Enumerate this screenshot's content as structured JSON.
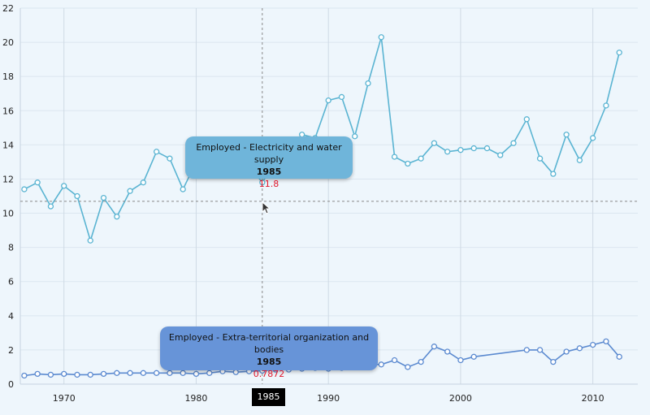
{
  "chart_data": {
    "type": "line",
    "title": "",
    "xlabel": "",
    "ylabel": "",
    "xlim": [
      1966.7,
      2013.4
    ],
    "ylim": [
      0,
      22
    ],
    "y_ticks": [
      0,
      2,
      4,
      6,
      8,
      10,
      12,
      14,
      16,
      18,
      20,
      22
    ],
    "x_ticks": [
      1970,
      1980,
      1990,
      2000,
      2010
    ],
    "grid": true,
    "series": [
      {
        "name": "Employed - Electricity and water supply",
        "color": "#5ab4d2",
        "points": [
          [
            1967,
            11.4
          ],
          [
            1968,
            11.8
          ],
          [
            1969,
            10.4
          ],
          [
            1970,
            11.6
          ],
          [
            1971,
            11.0
          ],
          [
            1972,
            8.4
          ],
          [
            1973,
            10.9
          ],
          [
            1974,
            9.8
          ],
          [
            1975,
            11.3
          ],
          [
            1976,
            11.8
          ],
          [
            1977,
            13.6
          ],
          [
            1978,
            13.2
          ],
          [
            1979,
            11.4
          ],
          [
            1980,
            13.0
          ],
          [
            1981,
            13.4
          ],
          [
            1982,
            13.2
          ],
          [
            1983,
            12.6
          ],
          [
            1984,
            12.8
          ],
          [
            1985,
            11.8
          ],
          [
            1986,
            13.0
          ],
          [
            1987,
            13.2
          ],
          [
            1988,
            14.6
          ],
          [
            1989,
            14.4
          ],
          [
            1990,
            16.6
          ],
          [
            1991,
            16.8
          ],
          [
            1992,
            14.5
          ],
          [
            1993,
            17.6
          ],
          [
            1994,
            20.3
          ],
          [
            1995,
            13.3
          ],
          [
            1996,
            12.9
          ],
          [
            1997,
            13.2
          ],
          [
            1998,
            14.1
          ],
          [
            1999,
            13.6
          ],
          [
            2000,
            13.7
          ],
          [
            2001,
            13.8
          ],
          [
            2002,
            13.8
          ],
          [
            2003,
            13.4
          ],
          [
            2004,
            14.1
          ],
          [
            2005,
            15.5
          ],
          [
            2006,
            13.2
          ],
          [
            2007,
            12.3
          ],
          [
            2008,
            14.6
          ],
          [
            2009,
            13.1
          ],
          [
            2010,
            14.4
          ],
          [
            2011,
            16.3
          ],
          [
            2012,
            19.4
          ]
        ]
      },
      {
        "name": "Employed - Extra-territorial organization and bodies",
        "color": "#5b8ad0",
        "points": [
          [
            1967,
            0.5
          ],
          [
            1968,
            0.6
          ],
          [
            1969,
            0.55
          ],
          [
            1970,
            0.6
          ],
          [
            1971,
            0.55
          ],
          [
            1972,
            0.55
          ],
          [
            1973,
            0.6
          ],
          [
            1974,
            0.65
          ],
          [
            1975,
            0.65
          ],
          [
            1976,
            0.65
          ],
          [
            1977,
            0.65
          ],
          [
            1978,
            0.65
          ],
          [
            1979,
            0.65
          ],
          [
            1980,
            0.6
          ],
          [
            1981,
            0.65
          ],
          [
            1982,
            0.75
          ],
          [
            1983,
            0.7
          ],
          [
            1984,
            0.75
          ],
          [
            1985,
            0.7872
          ],
          [
            1986,
            0.85
          ],
          [
            1987,
            0.85
          ],
          [
            1988,
            0.9
          ],
          [
            1989,
            0.95
          ],
          [
            1990,
            0.9
          ],
          [
            1991,
            0.95
          ],
          [
            1992,
            1.1
          ],
          [
            1993,
            1.15
          ],
          [
            1994,
            1.15
          ],
          [
            1995,
            1.4
          ],
          [
            1996,
            1.0
          ],
          [
            1997,
            1.3
          ],
          [
            1998,
            2.2
          ],
          [
            1999,
            1.9
          ],
          [
            2000,
            1.4
          ],
          [
            2001,
            1.6
          ],
          [
            2005,
            2.0
          ],
          [
            2006,
            2.0
          ],
          [
            2007,
            1.3
          ],
          [
            2008,
            1.9
          ],
          [
            2009,
            2.1
          ],
          [
            2010,
            2.3
          ],
          [
            2011,
            2.5
          ],
          [
            2012,
            1.6
          ]
        ]
      }
    ]
  },
  "crosshair": {
    "year_label": "1985",
    "value": 10.7
  },
  "tooltips": {
    "electricity": {
      "series": "Employed - Electricity and water supply",
      "year": "1985",
      "value": "11.8"
    },
    "extra": {
      "series": "Employed - Extra-territorial organization and bodies",
      "year": "1985",
      "value": "0.7872"
    }
  }
}
